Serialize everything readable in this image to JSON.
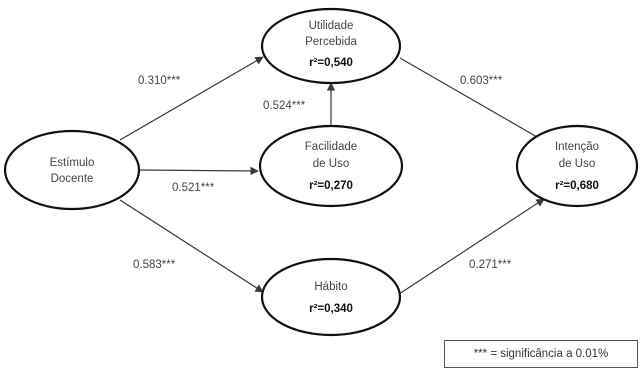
{
  "nodes": {
    "estimulo": {
      "lines": [
        "Estímulo",
        "Docente"
      ],
      "r2": ""
    },
    "utilidade": {
      "lines": [
        "Utilidade",
        "Percebida"
      ],
      "r2": "r²=0,540"
    },
    "facilidade": {
      "lines": [
        "Facilidade",
        "de Uso"
      ],
      "r2": "r²=0,270"
    },
    "habito": {
      "lines": [
        "Hábito"
      ],
      "r2": "r²=0,340"
    },
    "intencao": {
      "lines": [
        "Intenção",
        "de Uso"
      ],
      "r2": "r²=0,680"
    }
  },
  "edges": {
    "estimulo_utilidade": "0.310***",
    "facilidade_utilidade": "0.524***",
    "estimulo_facilidade": "0.521***",
    "estimulo_habito": "0.583***",
    "utilidade_intencao": "0.603***",
    "habito_intencao": "0.271***"
  },
  "legend": {
    "text": "*** = significância a 0.01%"
  }
}
